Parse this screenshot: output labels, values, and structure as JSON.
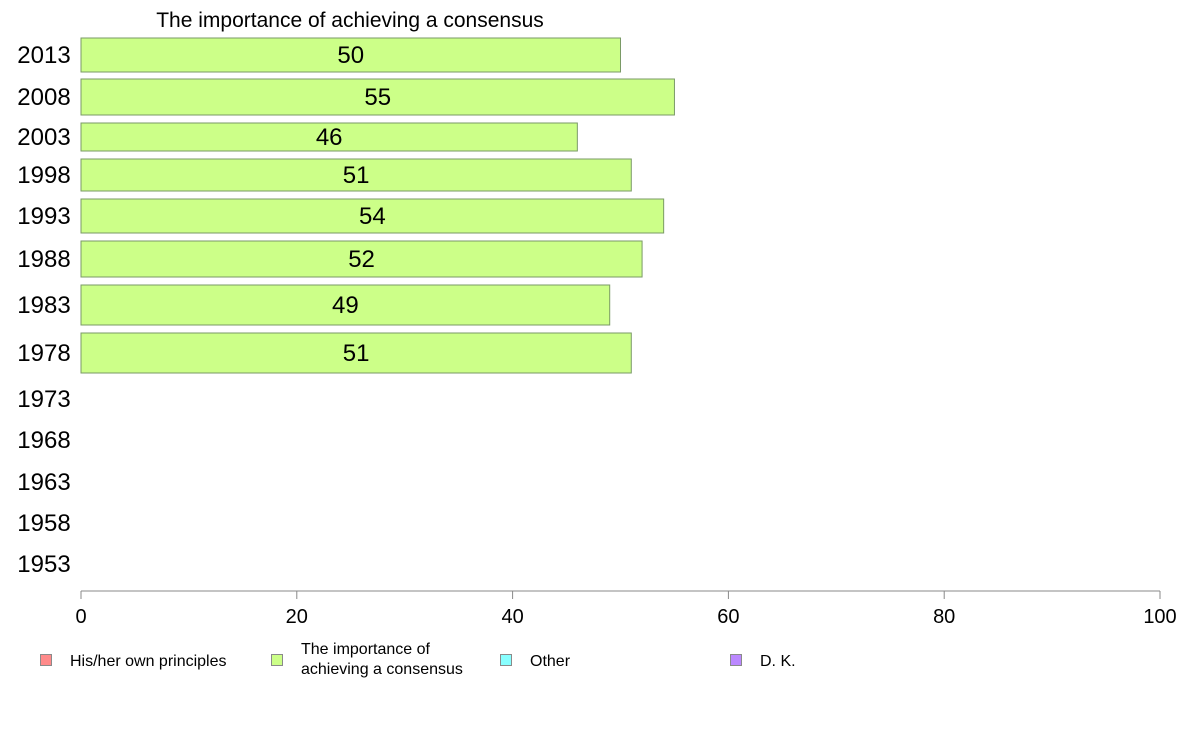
{
  "chart_data": {
    "type": "bar",
    "orientation": "horizontal",
    "title": "The importance of achieving a consensus",
    "categories": [
      "2013",
      "2008",
      "2003",
      "1998",
      "1993",
      "1988",
      "1983",
      "1978",
      "1973",
      "1968",
      "1963",
      "1958",
      "1953"
    ],
    "series": [
      {
        "name": "The importance of achieving a consensus",
        "color": "#ccff88",
        "values": [
          50,
          55,
          46,
          51,
          54,
          52,
          49,
          51,
          null,
          null,
          null,
          null,
          null
        ]
      }
    ],
    "xlim": [
      0,
      100
    ],
    "xticks": [
      "0",
      "20",
      "40",
      "60",
      "80",
      "100"
    ],
    "grid": false,
    "legend": {
      "placement": "bottom",
      "items": [
        {
          "label": "His/her own principles",
          "color": "#ff8a8a"
        },
        {
          "label": "The importance of achieving a consensus",
          "label_lines": [
            "The importance of",
            "achieving a consensus"
          ],
          "color": "#ccff88"
        },
        {
          "label": "Other",
          "color": "#88ffff"
        },
        {
          "label": "D. K.",
          "color": "#bb88ff"
        }
      ]
    }
  }
}
